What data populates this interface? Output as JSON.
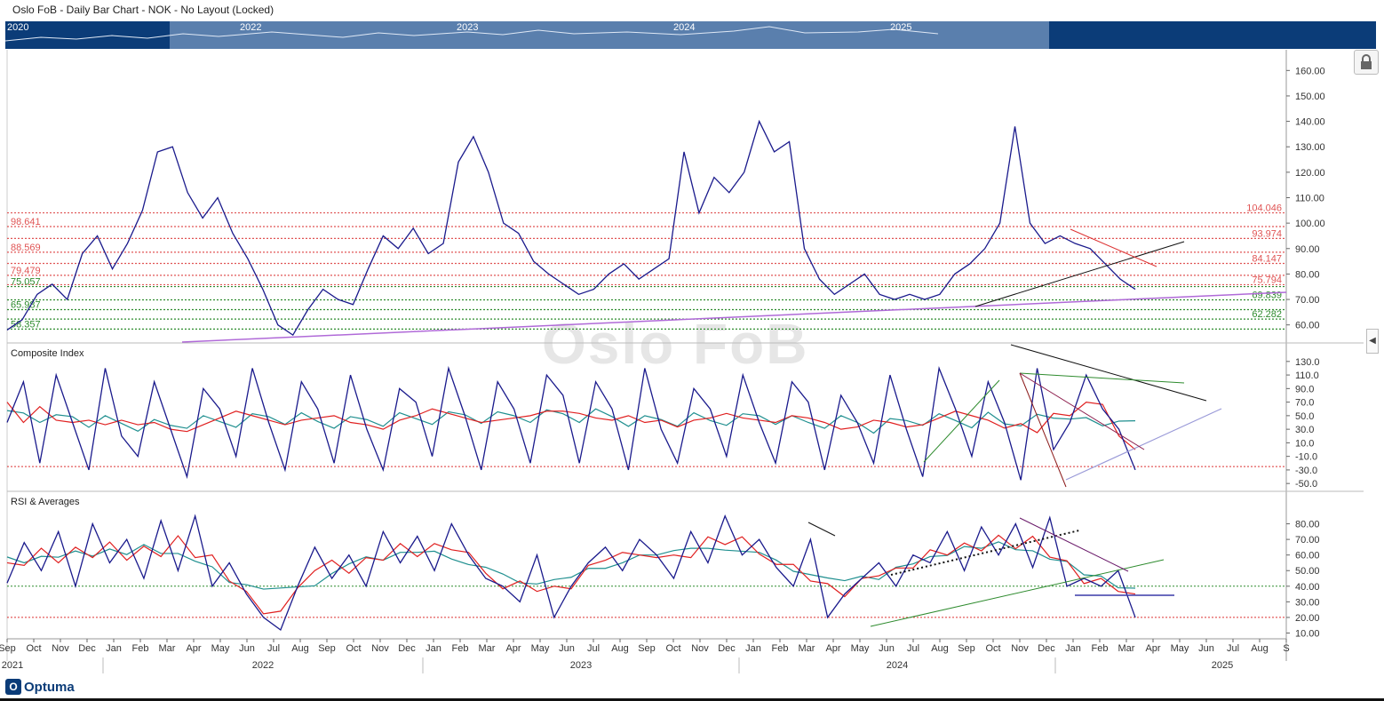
{
  "window": {
    "title": "Oslo FoB - Daily Bar Chart - NOK - No Layout (Locked)"
  },
  "watermark": "Oslo FoB",
  "navigator": {
    "years": [
      "2020",
      "2022",
      "2023",
      "2024",
      "2025"
    ]
  },
  "logo_text": "Optuma",
  "icons": {
    "lock": "lock-icon",
    "collapse": "chevron-left-icon",
    "logo": "optuma-logo-icon"
  },
  "colors": {
    "price": "#1a1a8c",
    "red": "#e02020",
    "teal": "#1f8f8f",
    "green": "#2e8b2e",
    "purple": "#b06ad8",
    "nav": "#0b3c78"
  },
  "chart_data": [
    {
      "type": "line",
      "title": "",
      "series": [
        {
          "name": "",
          "values": [
            58,
            62,
            72,
            76,
            70,
            88,
            95,
            82,
            92,
            105,
            128,
            130,
            112,
            102,
            110,
            96,
            86,
            74,
            60,
            56,
            66,
            74,
            70,
            68,
            82,
            95,
            90,
            98,
            88,
            92,
            124,
            134,
            120,
            100,
            96,
            85,
            80,
            76,
            72,
            74,
            80,
            84,
            78,
            82,
            86,
            128,
            104,
            118,
            112,
            120,
            140,
            128,
            132,
            90,
            78,
            72,
            76,
            80,
            72,
            70,
            72,
            70,
            72,
            80,
            84,
            90,
            100,
            138,
            100,
            92,
            95,
            92,
            90,
            84,
            78,
            74
          ]
        }
      ],
      "ylim": [
        55,
        165
      ],
      "yticks": [
        "160.00",
        "150.00",
        "140.00",
        "130.00",
        "120.00",
        "110.00",
        "100.00",
        "90.00",
        "80.00",
        "70.00",
        "60.00"
      ],
      "levels": [
        {
          "label": "104.046",
          "value": 104.046,
          "side": "right",
          "color": "#e05555"
        },
        {
          "label": "98.641",
          "value": 98.641,
          "side": "left",
          "color": "#e05555"
        },
        {
          "label": "93.974",
          "value": 93.974,
          "side": "right",
          "color": "#e05555"
        },
        {
          "label": "88.569",
          "value": 88.569,
          "side": "left",
          "color": "#e05555"
        },
        {
          "label": "84.147",
          "value": 84.147,
          "side": "right",
          "color": "#e05555"
        },
        {
          "label": "79.479",
          "value": 79.479,
          "side": "left",
          "color": "#e05555"
        },
        {
          "label": "75.794",
          "value": 75.794,
          "side": "right",
          "color": "#e05555"
        },
        {
          "label": "75.057",
          "value": 75.057,
          "side": "left",
          "color": "#2e8b2e"
        },
        {
          "label": "69.839",
          "value": 69.839,
          "side": "right",
          "color": "#2e8b2e"
        },
        {
          "label": "65.987",
          "value": 65.987,
          "side": "left",
          "color": "#2e8b2e"
        },
        {
          "label": "62.282",
          "value": 62.282,
          "side": "right",
          "color": "#2e8b2e"
        },
        {
          "label": "58.357",
          "value": 58.357,
          "side": "left",
          "color": "#2e8b2e"
        }
      ]
    },
    {
      "type": "line",
      "title": "Composite Index",
      "series": [
        {
          "name": "",
          "values": [
            40,
            100,
            -20,
            110,
            40,
            -30,
            120,
            20,
            -10,
            100,
            30,
            -40,
            90,
            60,
            -10,
            120,
            40,
            -30,
            100,
            60,
            -20,
            110,
            30,
            -30,
            90,
            70,
            -10,
            120,
            50,
            -30,
            100,
            60,
            -20,
            110,
            80,
            -20,
            100,
            60,
            -30,
            120,
            30,
            -20,
            90,
            60,
            -10,
            110,
            40,
            -20,
            100,
            70,
            -30,
            80,
            40,
            -20,
            110,
            30,
            -40,
            120,
            60,
            -10,
            100,
            40,
            -45,
            120,
            0,
            40,
            110,
            60,
            30,
            -30
          ]
        }
      ],
      "ylim": [
        -55,
        135
      ],
      "yticks": [
        "130.0",
        "110.0",
        "90.0",
        "70.0",
        "50.0",
        "30.0",
        "10.0",
        "-10.0",
        "-30.0",
        "-50.0"
      ]
    },
    {
      "type": "line",
      "title": "RSI & Averages",
      "series": [
        {
          "name": "",
          "values": [
            42,
            68,
            50,
            75,
            40,
            80,
            55,
            70,
            45,
            82,
            50,
            85,
            40,
            55,
            35,
            20,
            12,
            40,
            65,
            45,
            60,
            40,
            75,
            55,
            72,
            50,
            80,
            60,
            45,
            40,
            30,
            60,
            20,
            40,
            55,
            65,
            50,
            70,
            60,
            45,
            75,
            55,
            85,
            60,
            70,
            52,
            40,
            70,
            20,
            35,
            45,
            55,
            40,
            60,
            55,
            75,
            50,
            78,
            60,
            80,
            52,
            84,
            40,
            45,
            40,
            50,
            20
          ]
        }
      ],
      "ylim": [
        8,
        90
      ],
      "yticks": [
        "80.00",
        "70.00",
        "60.00",
        "50.00",
        "40.00",
        "30.00",
        "20.00",
        "10.00"
      ]
    }
  ],
  "x_axis": {
    "months": [
      "Sep",
      "Oct",
      "Nov",
      "Dec",
      "Jan",
      "Feb",
      "Mar",
      "Apr",
      "May",
      "Jun",
      "Jul",
      "Aug",
      "Sep",
      "Oct",
      "Nov",
      "Dec",
      "Jan",
      "Feb",
      "Mar",
      "Apr",
      "May",
      "Jun",
      "Jul",
      "Aug",
      "Sep",
      "Oct",
      "Nov",
      "Dec",
      "Jan",
      "Feb",
      "Mar",
      "Apr",
      "May",
      "Jun",
      "Jul",
      "Aug",
      "Sep",
      "Oct",
      "Nov",
      "Dec",
      "Jan",
      "Feb",
      "Mar",
      "Apr",
      "May",
      "Jun",
      "Jul",
      "Aug",
      "S"
    ],
    "years": [
      "2021",
      "2022",
      "2023",
      "2024",
      "2025"
    ]
  }
}
